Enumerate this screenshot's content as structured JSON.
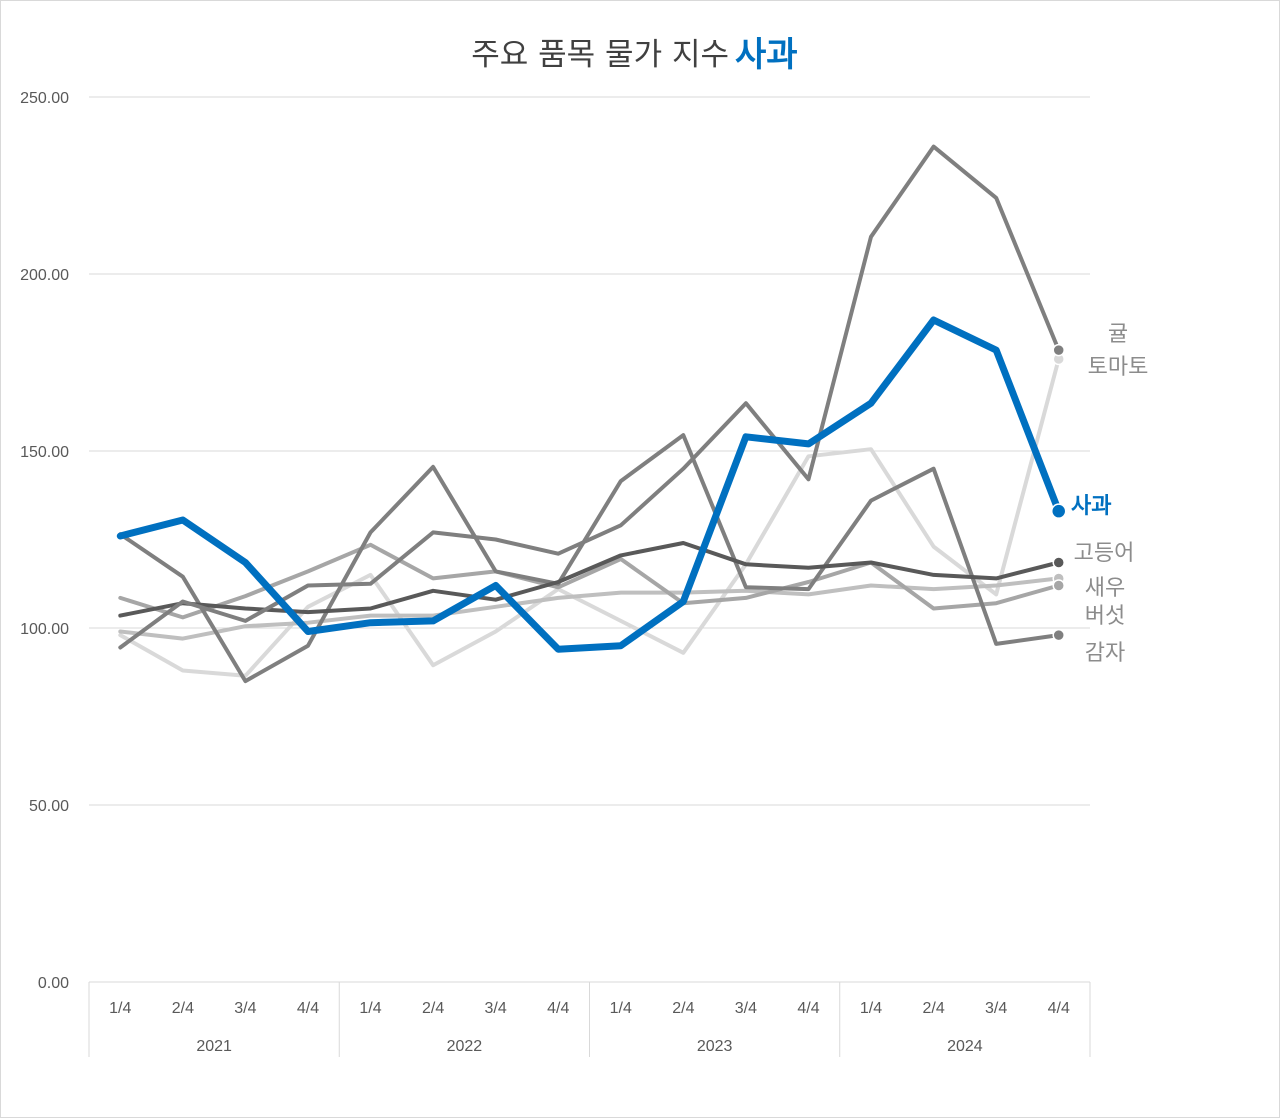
{
  "chart_data": {
    "type": "line",
    "title_prefix": "주요 품목 물가 지수",
    "title_highlight": "사과",
    "ylim": [
      0,
      250
    ],
    "yticks": [
      "0.00",
      "50.00",
      "100.00",
      "150.00",
      "200.00",
      "250.00"
    ],
    "categories": [
      "1/4",
      "2/4",
      "3/4",
      "4/4",
      "1/4",
      "2/4",
      "3/4",
      "4/4",
      "1/4",
      "2/4",
      "3/4",
      "4/4",
      "1/4",
      "2/4",
      "3/4",
      "4/4"
    ],
    "years": [
      "2021",
      "2022",
      "2023",
      "2024"
    ],
    "series": [
      {
        "name": "토마토",
        "color": "#d9d9d9",
        "width": 4,
        "values": [
          98,
          88,
          86.5,
          106,
          115,
          89.5,
          99,
          111,
          102,
          93,
          118,
          148.5,
          150.5,
          123,
          109.5,
          176
        ]
      },
      {
        "name": "새우",
        "color": "#bfbfbf",
        "width": 4,
        "values": [
          99,
          97,
          100.5,
          101.5,
          103.5,
          103.5,
          106,
          108.5,
          110,
          110,
          110.5,
          109.5,
          112,
          111,
          112,
          114
        ]
      },
      {
        "name": "버섯",
        "color": "#a6a6a6",
        "width": 4,
        "values": [
          108.5,
          103,
          109,
          116,
          123.5,
          114,
          116,
          111.5,
          119.5,
          107,
          108.5,
          113,
          118.5,
          105.5,
          107,
          112
        ]
      },
      {
        "name": "감자",
        "color": "#7f7f7f",
        "width": 4,
        "values": [
          126.5,
          114.5,
          85,
          95,
          127,
          145.5,
          116,
          112.5,
          141.5,
          154.5,
          111.5,
          111,
          136,
          145,
          95.5,
          98
        ]
      },
      {
        "name": "고등어",
        "color": "#595959",
        "width": 4,
        "values": [
          103.5,
          107,
          105.5,
          104.5,
          105.5,
          110.5,
          108,
          113,
          120.5,
          124,
          118,
          117,
          118.5,
          115,
          114,
          118.5
        ]
      },
      {
        "name": "귤",
        "color": "#7f7f7f",
        "width": 4,
        "values": [
          94.5,
          107.5,
          102,
          112,
          112.5,
          127,
          125,
          121,
          129,
          145,
          163.5,
          142,
          210.5,
          236,
          221.5,
          178.5
        ]
      },
      {
        "name": "사과",
        "color": "#0070c0",
        "width": 7,
        "values": [
          126,
          130.5,
          118.5,
          99,
          101.5,
          102,
          112,
          94,
          95,
          107.5,
          154,
          152,
          163.5,
          187,
          178.5,
          133
        ]
      }
    ],
    "end_labels": {
      "귤": "귤",
      "토마토": "토마토",
      "사과": "사과",
      "고등어": "고등어",
      "새우": "새우",
      "버섯": "버섯",
      "감자": "감자"
    }
  }
}
